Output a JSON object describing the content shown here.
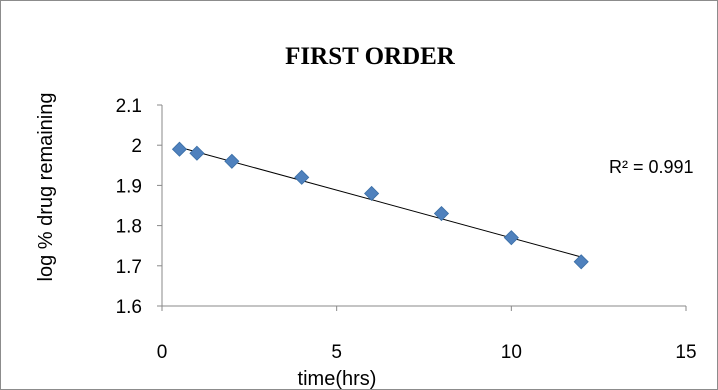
{
  "chart_data": {
    "type": "scatter",
    "title": "FIRST ORDER",
    "xlabel": "time(hrs)",
    "ylabel": "log % drug remaining",
    "xlim": [
      0,
      15
    ],
    "ylim": [
      1.6,
      2.1
    ],
    "x_ticks": [
      0,
      5,
      10,
      15
    ],
    "y_ticks": [
      "1.6",
      "1.7",
      "1.8",
      "1.9",
      "2",
      "2.1"
    ],
    "grid": false,
    "legend": "none",
    "marker": "diamond",
    "marker_color": "#4f81bd",
    "series": [
      {
        "x": [
          0.5,
          1,
          2,
          4,
          6,
          8,
          10,
          12
        ],
        "y": [
          1.99,
          1.98,
          1.96,
          1.92,
          1.88,
          1.83,
          1.77,
          1.71
        ]
      }
    ],
    "trendline": {
      "type": "linear",
      "x": [
        0.5,
        12
      ],
      "y": [
        1.995,
        1.722
      ],
      "r_squared_label": "R² = 0.991"
    }
  }
}
